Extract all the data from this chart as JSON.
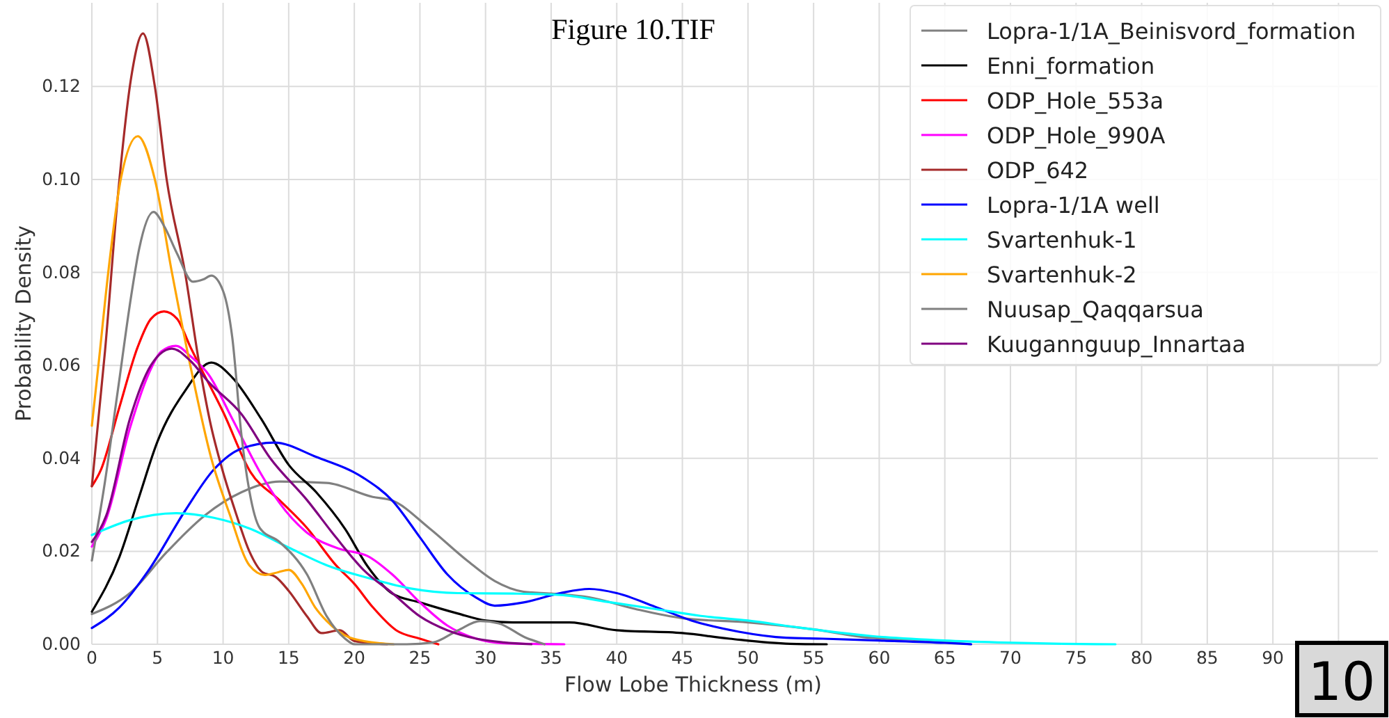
{
  "chart_data": {
    "type": "line",
    "title": "Figure 10.TIF",
    "xlabel": "Flow Lobe Thickness (m)",
    "ylabel": "Probability Density",
    "annotations": [
      "10"
    ],
    "xlim": [
      0,
      98
    ],
    "ylim": [
      0,
      0.138
    ],
    "xticks": [
      0,
      5,
      10,
      15,
      20,
      25,
      30,
      35,
      40,
      45,
      50,
      55,
      60,
      65,
      70,
      75,
      80,
      85,
      90,
      {
        "value": 95,
        "label": null
      }
    ],
    "yticks": [
      {
        "value": 0,
        "label": "0.00"
      },
      {
        "value": 0.02,
        "label": "0.02"
      },
      {
        "value": 0.04,
        "label": "0.04"
      },
      {
        "value": 0.06,
        "label": "0.06"
      },
      {
        "value": 0.08,
        "label": "0.08"
      },
      {
        "value": 0.1,
        "label": "0.10"
      },
      {
        "value": 0.12,
        "label": "0.12"
      }
    ],
    "grid": true,
    "legend": "top right",
    "marker": "none",
    "line_style": "solid",
    "series": [
      {
        "name": "Lopra-1/1A_Beinisvord_formation",
        "color": "#808080",
        "x": [
          0,
          2.9,
          5.7,
          8.6,
          11.4,
          14.3,
          17.9,
          21.4,
          22.9,
          25.7,
          28.6,
          30.7,
          32.9,
          35,
          37.9,
          41.4,
          45,
          50,
          55,
          59.3,
          63.5,
          67
        ],
        "values": [
          0.0065,
          0.011,
          0.0198,
          0.0277,
          0.0327,
          0.035,
          0.0347,
          0.0317,
          0.0309,
          0.025,
          0.018,
          0.0136,
          0.0113,
          0.0109,
          0.0101,
          0.0076,
          0.0056,
          0.0047,
          0.0032,
          0.0014,
          0.0009,
          0
        ]
      },
      {
        "name": "Enni_formation",
        "color": "#000000",
        "x": [
          0,
          2.1,
          3.6,
          5,
          7.1,
          9.1,
          10.7,
          12.9,
          15,
          17.1,
          19.3,
          21,
          22.9,
          25,
          27.9,
          30,
          32.1,
          36.4,
          40,
          45,
          48.6,
          53.2,
          56
        ],
        "values": [
          0.007,
          0.0188,
          0.0317,
          0.0436,
          0.0545,
          0.0606,
          0.0574,
          0.0485,
          0.0386,
          0.0327,
          0.0248,
          0.0168,
          0.0109,
          0.009,
          0.0066,
          0.0051,
          0.0047,
          0.0047,
          0.003,
          0.0024,
          0.0012,
          0.0001,
          0
        ]
      },
      {
        "name": "ODP_Hole_553a",
        "color": "#ff0000",
        "x": [
          0,
          0.7,
          2.1,
          3.5,
          4.5,
          5.5,
          6.5,
          7.5,
          8.2,
          10,
          12.1,
          14.3,
          16.4,
          18.6,
          20,
          21.4,
          23.2,
          25,
          26.4
        ],
        "values": [
          0.034,
          0.0376,
          0.051,
          0.064,
          0.07,
          0.0716,
          0.07,
          0.064,
          0.06,
          0.05,
          0.037,
          0.031,
          0.025,
          0.017,
          0.013,
          0.008,
          0.003,
          0.0012,
          0
        ]
      },
      {
        "name": "ODP_Hole_990A",
        "color": "#ff00ff",
        "x": [
          0,
          1.1,
          2.9,
          4.3,
          5.3,
          6.4,
          7.5,
          8.9,
          10.7,
          12.9,
          14.3,
          16.4,
          18.9,
          21,
          22.9,
          25,
          27.1,
          29.3,
          31.4,
          36
        ],
        "values": [
          0.021,
          0.027,
          0.0465,
          0.058,
          0.063,
          0.0642,
          0.062,
          0.058,
          0.0485,
          0.0366,
          0.0304,
          0.024,
          0.0205,
          0.019,
          0.015,
          0.009,
          0.004,
          0.0012,
          0.0002,
          0
        ]
      },
      {
        "name": "ODP_642",
        "color": "#a52a2a",
        "x": [
          0,
          1,
          2,
          3,
          3.9,
          4.8,
          5.7,
          7.1,
          8.2,
          9,
          10,
          11,
          12,
          13,
          14,
          15,
          16.4,
          17.5,
          18.9,
          20,
          22.5
        ],
        "values": [
          0.034,
          0.063,
          0.097,
          0.122,
          0.1314,
          0.12,
          0.1,
          0.08,
          0.06,
          0.048,
          0.037,
          0.028,
          0.02,
          0.0155,
          0.0145,
          0.0115,
          0.006,
          0.0024,
          0.003,
          0.0007,
          0
        ]
      },
      {
        "name": "Lopra-1/1A well",
        "color": "#0000ff",
        "x": [
          0,
          2.1,
          4.3,
          7.1,
          9.3,
          11.4,
          13.9,
          17.1,
          20.7,
          22.9,
          25,
          27.1,
          29.3,
          30.7,
          32.9,
          35.7,
          37.9,
          40,
          42.9,
          45.7,
          49.3,
          52.9,
          55.7,
          60,
          65,
          67
        ],
        "values": [
          0.0035,
          0.0079,
          0.0158,
          0.0287,
          0.0376,
          0.0421,
          0.0434,
          0.0403,
          0.0358,
          0.0309,
          0.023,
          0.015,
          0.01,
          0.0083,
          0.009,
          0.011,
          0.0119,
          0.011,
          0.0081,
          0.0051,
          0.0027,
          0.0014,
          0.0012,
          0.0008,
          0.0003,
          0
        ]
      },
      {
        "name": "Svartenhuk-1",
        "color": "#00ffff",
        "x": [
          0,
          2.9,
          6.4,
          9.3,
          12.1,
          15,
          17.9,
          21.4,
          24.3,
          27.9,
          32.1,
          35.7,
          39.3,
          42.9,
          46.4,
          50,
          53.6,
          59.3,
          65,
          69,
          74,
          78
        ],
        "values": [
          0.0235,
          0.0267,
          0.0282,
          0.0272,
          0.0248,
          0.0208,
          0.017,
          0.014,
          0.012,
          0.011,
          0.0109,
          0.0106,
          0.0091,
          0.0076,
          0.0061,
          0.0051,
          0.0037,
          0.0018,
          0.0008,
          0.0004,
          0.0001,
          0
        ]
      },
      {
        "name": "Svartenhuk-2",
        "color": "#ffa500",
        "x": [
          0,
          0.5,
          1.25,
          2.2,
          3.5,
          4.8,
          6.1,
          7.5,
          9.1,
          10.5,
          12,
          13.2,
          14.2,
          15,
          16,
          17,
          17.9,
          19.6,
          22,
          23
        ],
        "values": [
          0.047,
          0.06,
          0.08,
          0.1,
          0.1093,
          0.1,
          0.08,
          0.06,
          0.04,
          0.028,
          0.017,
          0.0149,
          0.0155,
          0.016,
          0.013,
          0.008,
          0.005,
          0.0015,
          0.0002,
          0
        ]
      },
      {
        "name": "Nuusap_Qaqqarsua",
        "color": "#808080",
        "x": [
          0,
          1,
          2,
          3,
          3.6,
          4.7,
          5.5,
          6.5,
          7.7,
          8.5,
          9.1,
          10,
          10.7,
          11.4,
          12,
          12.8,
          14.3,
          16.4,
          17.9,
          19.3,
          20,
          24,
          26,
          27.9,
          29.6,
          31,
          33,
          34.5
        ],
        "values": [
          0.018,
          0.035,
          0.055,
          0.075,
          0.085,
          0.093,
          0.09,
          0.084,
          0.078,
          0.0785,
          0.0793,
          0.076,
          0.066,
          0.045,
          0.033,
          0.025,
          0.022,
          0.015,
          0.006,
          0.0012,
          0,
          0,
          0.0004,
          0.003,
          0.005,
          0.0045,
          0.0015,
          0
        ]
      },
      {
        "name": "Kuugannguup_Innartaa",
        "color": "#800080",
        "x": [
          0,
          1.1,
          2.9,
          4.5,
          6.1,
          7.5,
          8.9,
          11.4,
          13.6,
          16.4,
          18.6,
          20.7,
          22.9,
          25,
          27.1,
          29.3,
          31.4,
          33.5
        ],
        "values": [
          0.022,
          0.0277,
          0.0485,
          0.06,
          0.0636,
          0.061,
          0.0564,
          0.0495,
          0.04,
          0.031,
          0.023,
          0.016,
          0.011,
          0.006,
          0.003,
          0.0012,
          0.0004,
          0
        ]
      }
    ]
  }
}
